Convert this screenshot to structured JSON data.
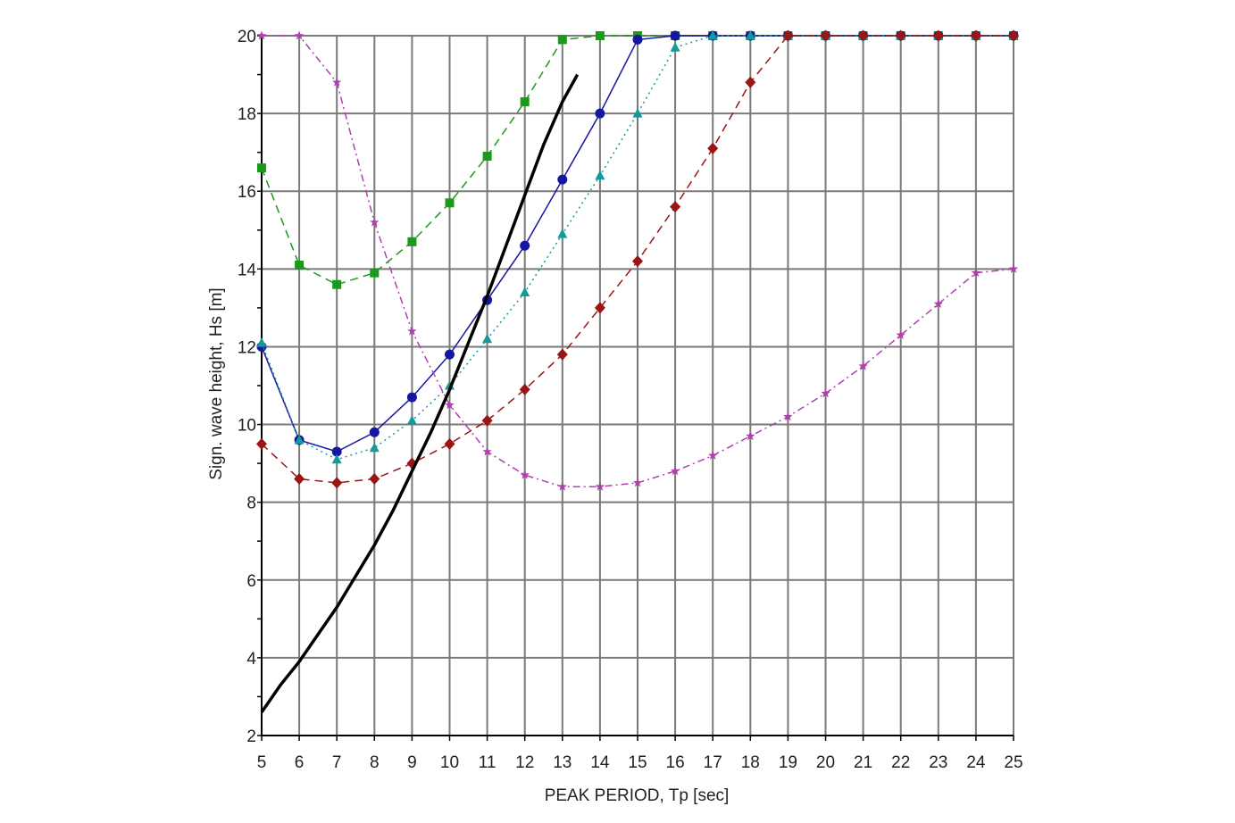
{
  "chart_data": {
    "type": "line",
    "xlabel": "PEAK PERIOD, Tp [sec]",
    "ylabel": "Sign. wave height, Hs [m]",
    "xlim": [
      5,
      25
    ],
    "ylim": [
      2,
      20
    ],
    "xticks": [
      "5",
      "6",
      "7",
      "8",
      "9",
      "10",
      "11",
      "12",
      "13",
      "14",
      "15",
      "16",
      "17",
      "18",
      "19",
      "20",
      "21",
      "22",
      "23",
      "24",
      "25"
    ],
    "yticks": [
      "2",
      "4",
      "6",
      "8",
      "10",
      "12",
      "14",
      "16",
      "18",
      "20"
    ],
    "grid": true,
    "series": [
      {
        "color": "#1a9a1a",
        "marker": "square",
        "dash": "dashed",
        "x": [
          5,
          6,
          7,
          8,
          9,
          10,
          11,
          12,
          13,
          14,
          15,
          16,
          17,
          18,
          19,
          20,
          21,
          22,
          23,
          24,
          25
        ],
        "y": [
          16.6,
          14.1,
          13.6,
          13.9,
          14.7,
          15.7,
          16.9,
          18.3,
          19.9,
          20,
          20,
          20,
          20,
          20,
          20,
          20,
          20,
          20,
          20,
          20,
          20
        ]
      },
      {
        "color": "#1616a0",
        "marker": "circle",
        "dash": "solid",
        "x": [
          5,
          6,
          7,
          8,
          9,
          10,
          11,
          12,
          13,
          14,
          15,
          16,
          17,
          18,
          19,
          20,
          21,
          22,
          23,
          24,
          25
        ],
        "y": [
          12.0,
          9.6,
          9.3,
          9.8,
          10.7,
          11.8,
          13.2,
          14.6,
          16.3,
          18.0,
          19.9,
          20,
          20,
          20,
          20,
          20,
          20,
          20,
          20,
          20,
          20
        ]
      },
      {
        "color": "#139a9a",
        "marker": "triangle",
        "dash": "dotted",
        "x": [
          5,
          6,
          7,
          8,
          9,
          10,
          11,
          12,
          13,
          14,
          15,
          16,
          17,
          18,
          19,
          20,
          21,
          22,
          23,
          24,
          25
        ],
        "y": [
          12.1,
          9.6,
          9.1,
          9.4,
          10.1,
          11.0,
          12.2,
          13.4,
          14.9,
          16.4,
          18.0,
          19.7,
          20,
          20,
          20,
          20,
          20,
          20,
          20,
          20,
          20
        ]
      },
      {
        "color": "#9a1616",
        "marker": "diamond",
        "dash": "dashed",
        "x": [
          5,
          6,
          7,
          8,
          9,
          10,
          11,
          12,
          13,
          14,
          15,
          16,
          17,
          18,
          19,
          20,
          21,
          22,
          23,
          24,
          25
        ],
        "y": [
          9.5,
          8.6,
          8.5,
          8.6,
          9.0,
          9.5,
          10.1,
          10.9,
          11.8,
          13.0,
          14.2,
          15.6,
          17.1,
          18.8,
          20,
          20,
          20,
          20,
          20,
          20,
          20
        ]
      },
      {
        "color": "#b040b0",
        "marker": "star",
        "dash": "dashdot",
        "x": [
          5,
          6,
          7,
          8,
          9,
          10,
          11,
          12,
          13,
          14,
          15,
          16,
          17,
          18,
          19,
          20,
          21,
          22,
          23,
          24,
          25
        ],
        "y": [
          20,
          20,
          18.8,
          15.2,
          12.4,
          10.5,
          9.3,
          8.7,
          8.4,
          8.4,
          8.5,
          8.8,
          9.2,
          9.7,
          10.2,
          10.8,
          11.5,
          12.3,
          13.1,
          13.9,
          14.0
        ]
      },
      {
        "color": "#000000",
        "marker": "none",
        "dash": "solid",
        "x": [
          5,
          5.5,
          6,
          6.5,
          7,
          7.5,
          8,
          8.5,
          9,
          9.5,
          10,
          10.5,
          11,
          11.5,
          12,
          12.5,
          13,
          13.4
        ],
        "y": [
          2.6,
          3.3,
          3.9,
          4.6,
          5.3,
          6.1,
          6.9,
          7.8,
          8.8,
          9.8,
          10.9,
          12.1,
          13.3,
          14.6,
          15.9,
          17.2,
          18.3,
          19.0
        ]
      }
    ]
  }
}
